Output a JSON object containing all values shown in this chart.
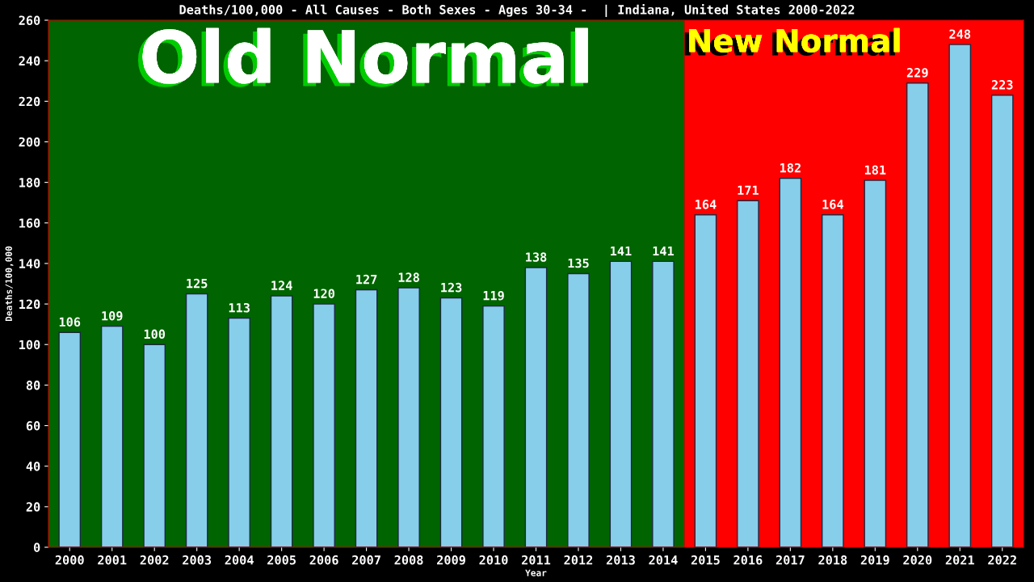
{
  "chart_data": {
    "type": "bar",
    "title": "Deaths/100,000 - All Causes - Both Sexes - Ages 30-34 -  | Indiana, United States 2000-2022",
    "xlabel": "Year",
    "ylabel": "Deaths/100,000",
    "categories": [
      "2000",
      "2001",
      "2002",
      "2003",
      "2004",
      "2005",
      "2006",
      "2007",
      "2008",
      "2009",
      "2010",
      "2011",
      "2012",
      "2013",
      "2014",
      "2015",
      "2016",
      "2017",
      "2018",
      "2019",
      "2020",
      "2021",
      "2022"
    ],
    "values": [
      106,
      109,
      100,
      125,
      113,
      124,
      120,
      127,
      128,
      123,
      119,
      138,
      135,
      141,
      141,
      164,
      171,
      182,
      164,
      181,
      229,
      248,
      223
    ],
    "color": "#87ceeb",
    "ylim": [
      0,
      260
    ],
    "yticks": [
      0,
      20,
      40,
      60,
      80,
      100,
      120,
      140,
      160,
      180,
      200,
      220,
      240,
      260
    ],
    "data_labels": true,
    "grid": false,
    "legend": false,
    "bands": [
      {
        "axis": "x",
        "from": "2000",
        "to": "2014",
        "label": "Old Normal",
        "color": "#006400"
      },
      {
        "axis": "x",
        "from": "2015",
        "to": "2022",
        "label": "New Normal",
        "color": "#ff0000"
      }
    ]
  }
}
